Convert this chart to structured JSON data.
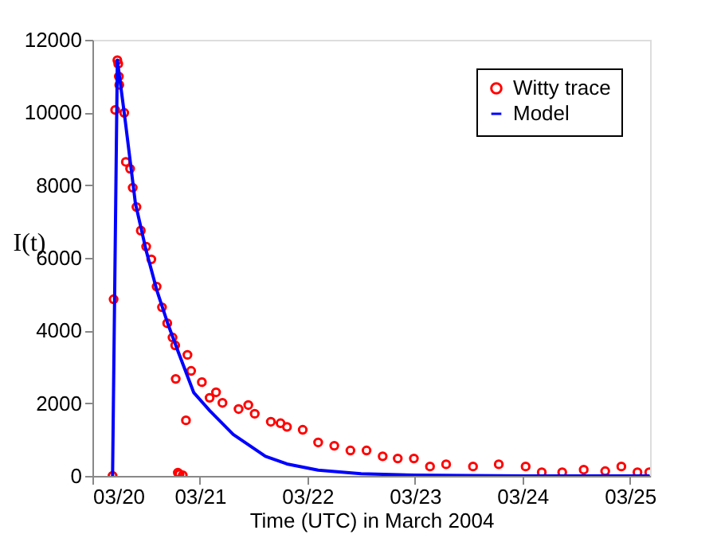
{
  "chart_data": {
    "type": "line",
    "xlabel": "Time (UTC) in March 2004",
    "ylabel": "I(t)",
    "xlim": [
      "2004-03-20T00:00",
      "2004-03-25T04:30"
    ],
    "xticks": [
      {
        "value": "2004-03-20",
        "label": "03/20"
      },
      {
        "value": "2004-03-21",
        "label": "03/21"
      },
      {
        "value": "2004-03-22",
        "label": "03/22"
      },
      {
        "value": "2004-03-23",
        "label": "03/23"
      },
      {
        "value": "2004-03-24",
        "label": "03/24"
      },
      {
        "value": "2004-03-25",
        "label": "03/25"
      }
    ],
    "ylim": [
      0,
      12000
    ],
    "yticks": [
      0,
      2000,
      4000,
      6000,
      8000,
      10000,
      12000
    ],
    "grid": false,
    "legend": "top right",
    "series": [
      {
        "name": "Witty trace",
        "type": "scatter",
        "marker": "circle",
        "color": "#ff0000",
        "x": [
          "2004-03-20T04:30",
          "2004-03-20T04:44",
          "2004-03-20T05:05",
          "2004-03-20T05:34",
          "2004-03-20T05:46",
          "2004-03-20T05:54",
          "2004-03-20T06:00",
          "2004-03-20T07:06",
          "2004-03-20T07:28",
          "2004-03-20T08:25",
          "2004-03-20T09:00",
          "2004-03-20T09:50",
          "2004-03-20T10:48",
          "2004-03-20T12:00",
          "2004-03-20T13:09",
          "2004-03-20T14:20",
          "2004-03-20T15:32",
          "2004-03-20T16:42",
          "2004-03-20T17:53",
          "2004-03-20T18:29",
          "2004-03-20T18:36",
          "2004-03-20T19:05",
          "2004-03-20T19:26",
          "2004-03-20T20:10",
          "2004-03-20T20:53",
          "2004-03-20T21:13",
          "2004-03-20T22:02",
          "2004-03-21T00:26",
          "2004-03-21T02:10",
          "2004-03-21T03:36",
          "2004-03-21T05:02",
          "2004-03-21T08:38",
          "2004-03-21T10:48",
          "2004-03-21T12:14",
          "2004-03-21T15:50",
          "2004-03-21T18:00",
          "2004-03-21T19:26",
          "2004-03-21T22:57",
          "2004-03-22T02:24",
          "2004-03-22T06:00",
          "2004-03-22T09:36",
          "2004-03-22T13:12",
          "2004-03-22T16:48",
          "2004-03-22T20:10",
          "2004-03-22T23:46",
          "2004-03-23T03:22",
          "2004-03-23T06:58",
          "2004-03-23T12:58",
          "2004-03-23T18:43",
          "2004-03-24T00:43",
          "2004-03-24T04:19",
          "2004-03-24T08:53",
          "2004-03-24T13:41",
          "2004-03-24T18:29",
          "2004-03-24T22:05",
          "2004-03-25T01:41",
          "2004-03-25T04:19"
        ],
        "values": [
          0,
          4860,
          10070,
          11440,
          11340,
          10990,
          10760,
          9990,
          8640,
          8450,
          7930,
          7400,
          6750,
          6310,
          5960,
          5210,
          4640,
          4200,
          3810,
          3590,
          2670,
          90,
          50,
          20,
          1530,
          3330,
          2890,
          2580,
          2150,
          2300,
          2010,
          1840,
          1950,
          1710,
          1490,
          1450,
          1350,
          1270,
          920,
          830,
          700,
          700,
          540,
          480,
          480,
          260,
          320,
          260,
          320,
          260,
          100,
          100,
          170,
          130,
          260,
          100,
          100
        ]
      },
      {
        "name": "Model",
        "marker": "none",
        "line_style": "solid",
        "color": "#0000ff",
        "x": [
          "2004-03-20T04:30",
          "2004-03-20T05:34",
          "2004-03-20T07:12",
          "2004-03-20T09:36",
          "2004-03-20T12:00",
          "2004-03-20T14:24",
          "2004-03-20T16:48",
          "2004-03-20T19:12",
          "2004-03-20T22:38",
          "2004-03-21T02:10",
          "2004-03-21T07:26",
          "2004-03-21T14:38",
          "2004-03-21T19:26",
          "2004-03-22T02:24",
          "2004-03-22T12:00",
          "2004-03-23T00:00",
          "2004-03-24T00:00",
          "2004-03-25T04:19"
        ],
        "values": [
          0,
          11440,
          9900,
          7500,
          6200,
          5100,
          4200,
          3400,
          2290,
          1800,
          1140,
          540,
          330,
          160,
          60,
          20,
          0,
          0
        ]
      }
    ]
  }
}
